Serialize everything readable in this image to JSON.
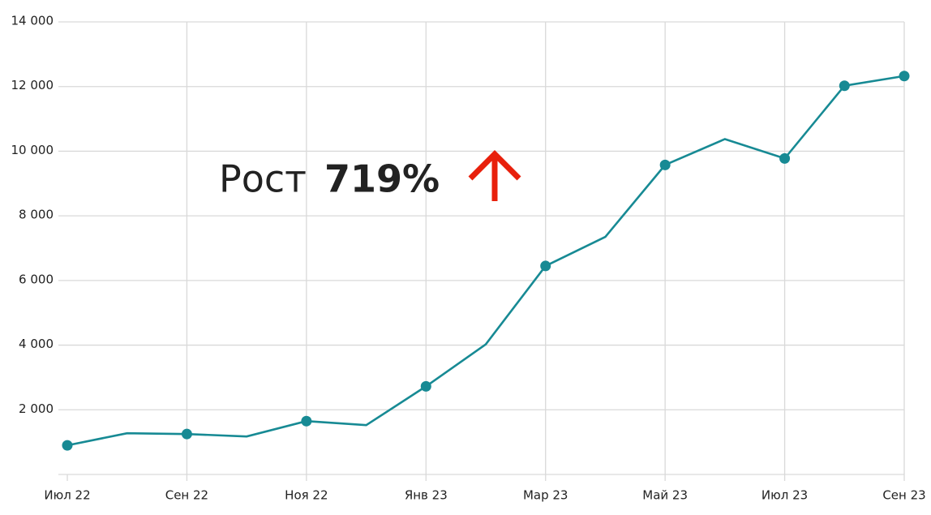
{
  "chart_data": {
    "type": "line",
    "annotation": {
      "text": "Рост",
      "highlight": "719%"
    },
    "x": [
      "Июл 22",
      null,
      "Сен 22",
      null,
      "Ноя 22",
      null,
      "Янв 23",
      null,
      "Мар 23",
      null,
      "Май 23",
      null,
      "Июл 23",
      null,
      "Сен 23"
    ],
    "series": [
      {
        "color": "#178a94",
        "values": [
          900,
          1275,
          1250,
          1175,
          1650,
          1525,
          2725,
          4025,
          6450,
          7350,
          9575,
          10375,
          9775,
          12025,
          12325
        ]
      }
    ],
    "marker_indices": [
      0,
      2,
      4,
      6,
      8,
      10,
      12,
      13,
      14
    ],
    "ylim": [
      0,
      14000
    ],
    "yticks": [
      {
        "value": 2000,
        "label": "2 000"
      },
      {
        "value": 4000,
        "label": "4 000"
      },
      {
        "value": 6000,
        "label": "6 000"
      },
      {
        "value": 8000,
        "label": "8 000"
      },
      {
        "value": 10000,
        "label": "10 000"
      },
      {
        "value": 12000,
        "label": "12 000"
      },
      {
        "value": 14000,
        "label": "14 000"
      }
    ],
    "grid": true,
    "highlight_color": "#e8200c"
  }
}
